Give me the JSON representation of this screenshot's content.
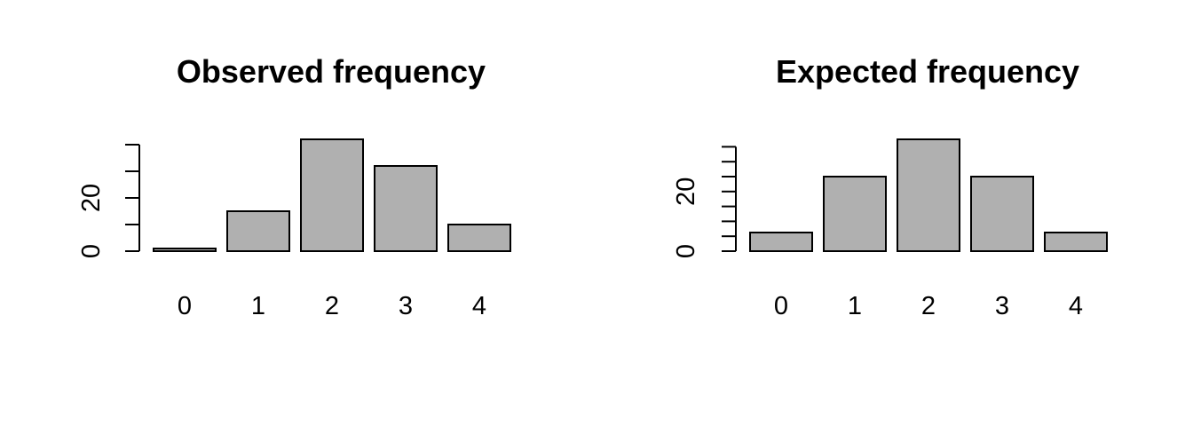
{
  "colors": {
    "bar_fill": "#b0b0b0",
    "bar_stroke": "#000000",
    "background": "#ffffff"
  },
  "chart_data": [
    {
      "type": "bar",
      "title": "Observed frequency",
      "xlabel": "",
      "ylabel": "",
      "categories": [
        "0",
        "1",
        "2",
        "3",
        "4"
      ],
      "values": [
        1,
        15,
        42,
        32,
        10
      ],
      "ylim": [
        0,
        42
      ],
      "yticks": [
        0,
        10,
        20,
        30,
        40
      ],
      "ytick_labels": [
        "0",
        "",
        "20",
        "",
        ""
      ],
      "grid": false,
      "legend": "none"
    },
    {
      "type": "bar",
      "title": "Expected frequency",
      "xlabel": "",
      "ylabel": "",
      "categories": [
        "0",
        "1",
        "2",
        "3",
        "4"
      ],
      "values": [
        6.25,
        25,
        37.5,
        25,
        6.25
      ],
      "ylim": [
        0,
        37.5
      ],
      "yticks": [
        0,
        5,
        10,
        15,
        20,
        25,
        30,
        35
      ],
      "ytick_labels": [
        "0",
        "",
        "",
        "",
        "20",
        "",
        "",
        ""
      ],
      "grid": false,
      "legend": "none"
    }
  ]
}
